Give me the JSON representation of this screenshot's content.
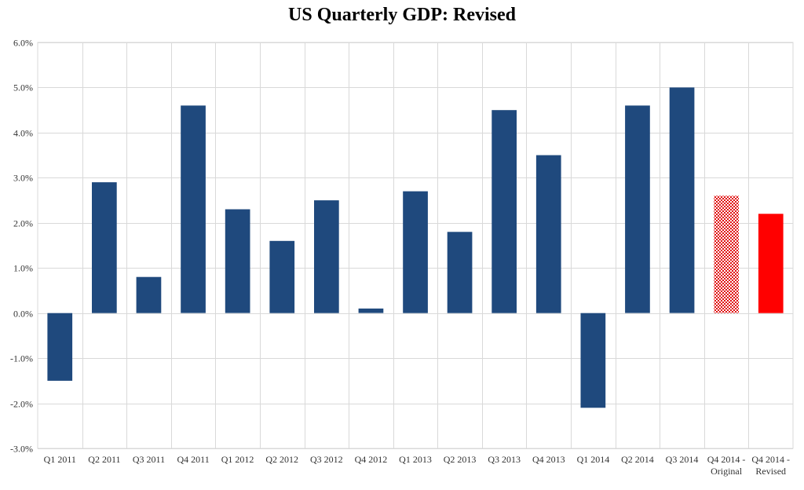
{
  "chart_data": {
    "type": "bar",
    "title": "US Quarterly GDP: Revised",
    "xlabel": "",
    "ylabel": "",
    "ylim": [
      -3.0,
      6.0
    ],
    "y_ticks": [
      6.0,
      5.0,
      4.0,
      3.0,
      2.0,
      1.0,
      0.0,
      -1.0,
      -2.0,
      -3.0
    ],
    "y_tick_labels": [
      "6.0%",
      "5.0%",
      "4.0%",
      "3.0%",
      "2.0%",
      "1.0%",
      "0.0%",
      "-1.0%",
      "-2.0%",
      "-3.0%"
    ],
    "grid": true,
    "categories": [
      [
        "Q1 2011"
      ],
      [
        "Q2 2011"
      ],
      [
        "Q3 2011"
      ],
      [
        "Q4 2011"
      ],
      [
        "Q1 2012"
      ],
      [
        "Q2 2012"
      ],
      [
        "Q3 2012"
      ],
      [
        "Q4 2012"
      ],
      [
        "Q1 2013"
      ],
      [
        "Q2 2013"
      ],
      [
        "Q3 2013"
      ],
      [
        "Q4 2013"
      ],
      [
        "Q1 2014"
      ],
      [
        "Q2 2014"
      ],
      [
        "Q3 2014"
      ],
      [
        "Q4 2014 -",
        "Original"
      ],
      [
        "Q4 2014 -",
        "Revised"
      ]
    ],
    "values": [
      -1.5,
      2.9,
      0.8,
      4.6,
      2.3,
      1.6,
      2.5,
      0.1,
      2.7,
      1.8,
      4.5,
      3.5,
      -2.1,
      4.6,
      5.0,
      2.6,
      2.2
    ],
    "bar_styles": [
      "solid",
      "solid",
      "solid",
      "solid",
      "solid",
      "solid",
      "solid",
      "solid",
      "solid",
      "solid",
      "solid",
      "solid",
      "solid",
      "solid",
      "solid",
      "checker",
      "highlight"
    ],
    "colors": {
      "bar": "#1f497d",
      "highlight": "#ff0000",
      "checker": "#e01010",
      "grid": "#d9d9d9",
      "axis": "#a0a0a0"
    }
  }
}
